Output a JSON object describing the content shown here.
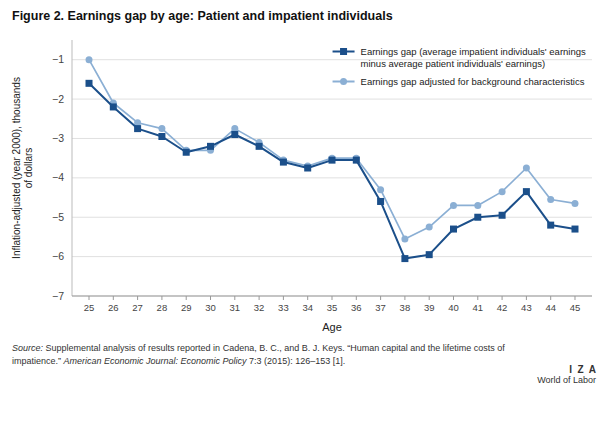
{
  "chart_data": {
    "type": "line",
    "title": "Figure 2. Earnings gap by age: Patient and impatient individuals",
    "x_label": "Age",
    "y_label": "Inflation-adjusted (year 2000), thousands\nof dollars",
    "x": [
      25,
      26,
      27,
      28,
      29,
      30,
      31,
      32,
      33,
      34,
      35,
      36,
      37,
      38,
      39,
      40,
      41,
      42,
      43,
      44,
      45
    ],
    "series": [
      {
        "name": "Earnings gap (average impatient individuals' earnings\nminus average patient individuals' earnings)",
        "color": "#1B4F8A",
        "marker": "square",
        "values": [
          -1.6,
          -2.2,
          -2.75,
          -2.95,
          -3.35,
          -3.2,
          -2.9,
          -3.2,
          -3.6,
          -3.75,
          -3.55,
          -3.55,
          -4.6,
          -6.05,
          -5.95,
          -5.3,
          -5.0,
          -4.95,
          -4.35,
          -5.2,
          -5.3
        ]
      },
      {
        "name": "Earnings gap adjusted for background characteristics",
        "color": "#8BAFD4",
        "marker": "circle",
        "values": [
          -1.0,
          -2.1,
          -2.6,
          -2.75,
          -3.3,
          -3.3,
          -2.75,
          -3.1,
          -3.55,
          -3.7,
          -3.5,
          -3.5,
          -4.3,
          -5.55,
          -5.25,
          -4.7,
          -4.7,
          -4.35,
          -3.75,
          -4.55,
          -4.65
        ]
      }
    ],
    "xlim": [
      24.3,
      45.7
    ],
    "xticks": [
      25,
      26,
      27,
      28,
      29,
      30,
      31,
      32,
      33,
      34,
      35,
      36,
      37,
      38,
      39,
      40,
      41,
      42,
      43,
      44,
      45
    ],
    "ylim": [
      -7,
      -0.5
    ],
    "yticks": [
      {
        "value": -7,
        "label": "−7"
      },
      {
        "value": -6,
        "label": "−6"
      },
      {
        "value": -5,
        "label": "−5"
      },
      {
        "value": -4,
        "label": "−4"
      },
      {
        "value": -3,
        "label": "−3"
      },
      {
        "value": -2,
        "label": "−2"
      },
      {
        "value": -1,
        "label": "−1"
      }
    ],
    "grid": true,
    "legend": "upper right",
    "source": [
      {
        "italic": "Source:",
        "text": " Supplemental analysis of results reported in Cadena, B. C., and B. J. Keys. “Human capital and the lifetime costs of impatience.” "
      },
      {
        "italic": "American Economic Journal: Economic Policy",
        "text": " 7:3 (2015): 126–153 [1]."
      }
    ],
    "annotations": [
      "I  Z  A",
      "World of Labor"
    ]
  }
}
